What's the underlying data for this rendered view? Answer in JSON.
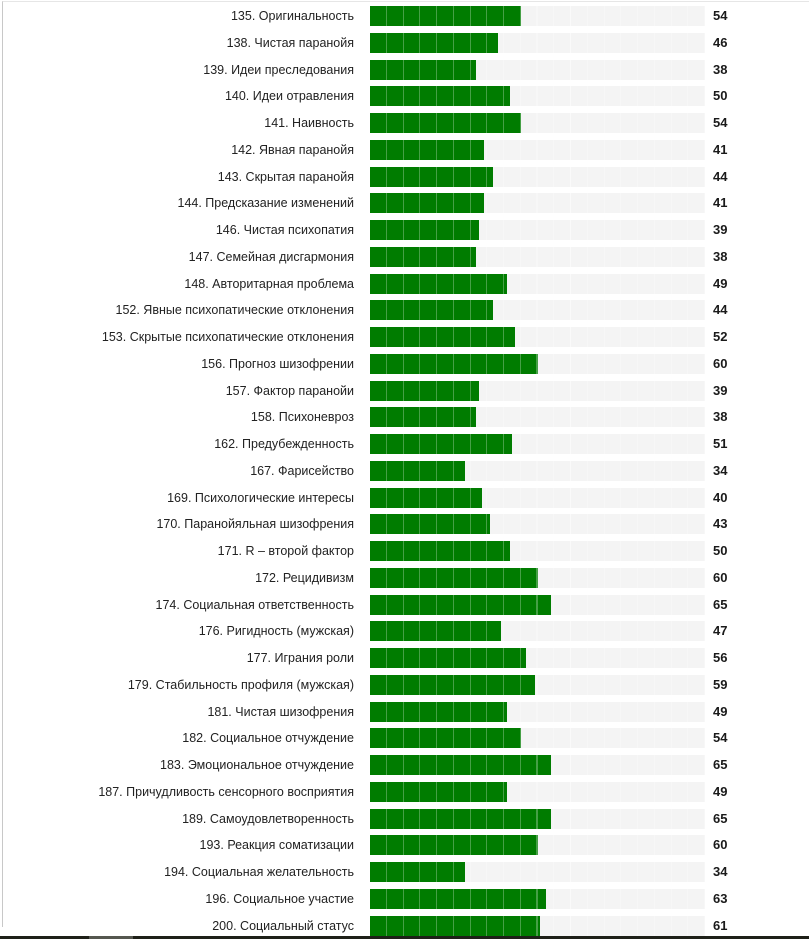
{
  "chart_data": {
    "type": "bar",
    "orientation": "horizontal",
    "title": "",
    "xlabel": "",
    "ylabel": "",
    "xlim": [
      0,
      120
    ],
    "segments": 20,
    "bar_color": "#007c00",
    "track_color": "#f4f4f4",
    "categories": [
      "135. Оригинальность",
      "138. Чистая паранойя",
      "139. Идеи преследования",
      "140. Идеи отравления",
      "141. Наивность",
      "142. Явная паранойя",
      "143. Скрытая паранойя",
      "144. Предсказание изменений",
      "146. Чистая психопатия",
      "147. Семейная дисгармония",
      "148. Авторитарная проблема",
      "152. Явные психопатические отклонения",
      "153. Скрытые психопатические отклонения",
      "156. Прогноз шизофрении",
      "157. Фактор паранойи",
      "158. Психоневроз",
      "162. Предубежденность",
      "167. Фарисейство",
      "169. Психологические интересы",
      "170. Паранойяльная шизофрения",
      "171. R – второй фактор",
      "172. Рецидивизм",
      "174. Социальная ответственность",
      "176. Ригидность (мужская)",
      "177. Играния роли",
      "179. Стабильность профиля (мужская)",
      "181. Чистая шизофрения",
      "182. Социальное отчуждение",
      "183. Эмоциональное отчуждение",
      "187. Причудливость сенсорного восприятия",
      "189. Самоудовлетворенность",
      "193. Реакция соматизации",
      "194. Социальная желательность",
      "196. Социальное участие",
      "200. Социальный статус"
    ],
    "values": [
      54,
      46,
      38,
      50,
      54,
      41,
      44,
      41,
      39,
      38,
      49,
      44,
      52,
      60,
      39,
      38,
      51,
      34,
      40,
      43,
      50,
      60,
      65,
      47,
      56,
      59,
      49,
      54,
      65,
      49,
      65,
      60,
      34,
      63,
      61
    ]
  }
}
